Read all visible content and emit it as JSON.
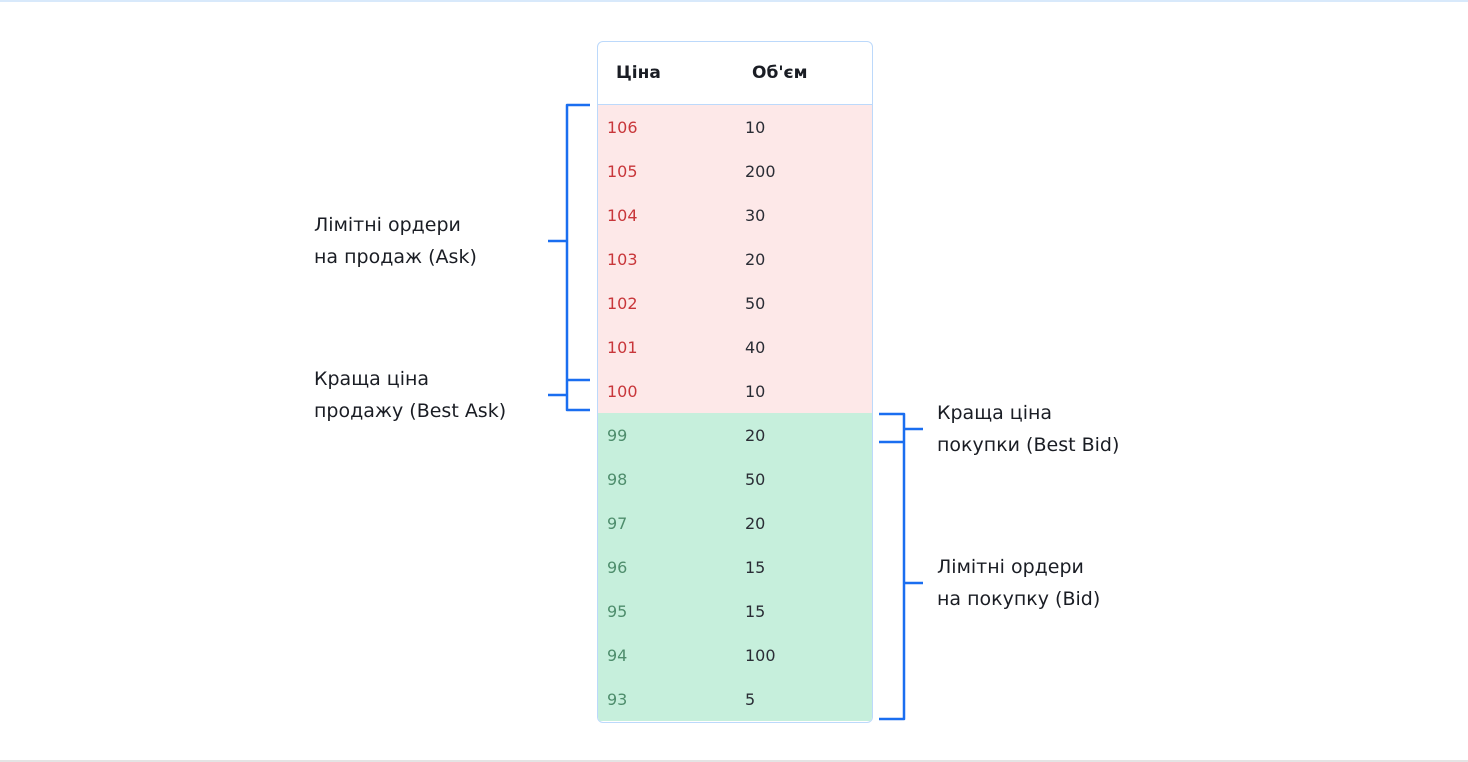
{
  "header": {
    "price": "Ціна",
    "volume": "Об'єм"
  },
  "asks": [
    {
      "price": "106",
      "volume": "10"
    },
    {
      "price": "105",
      "volume": "200"
    },
    {
      "price": "104",
      "volume": "30"
    },
    {
      "price": "103",
      "volume": "20"
    },
    {
      "price": "102",
      "volume": "50"
    },
    {
      "price": "101",
      "volume": "40"
    },
    {
      "price": "100",
      "volume": "10"
    }
  ],
  "bids": [
    {
      "price": "99",
      "volume": "20"
    },
    {
      "price": "98",
      "volume": "50"
    },
    {
      "price": "97",
      "volume": "20"
    },
    {
      "price": "96",
      "volume": "15"
    },
    {
      "price": "95",
      "volume": "15"
    },
    {
      "price": "94",
      "volume": "100"
    },
    {
      "price": "93",
      "volume": "5"
    }
  ],
  "labels": {
    "ask_line1": "Лімітні ордери",
    "ask_line2": "на продаж (Ask)",
    "best_ask_line1": "Краща ціна",
    "best_ask_line2": "продажу (Best Ask)",
    "best_bid_line1": "Краща ціна",
    "best_bid_line2": "покупки (Best Bid)",
    "bid_line1": "Лімітні ордери",
    "bid_line2": "на покупку (Bid)"
  },
  "colors": {
    "ask_bg": "#fde8e8",
    "bid_bg": "#c6efdc",
    "ask_text": "#c8363a",
    "bid_text": "#4e8d6c",
    "bracket": "#1a6ef0"
  }
}
